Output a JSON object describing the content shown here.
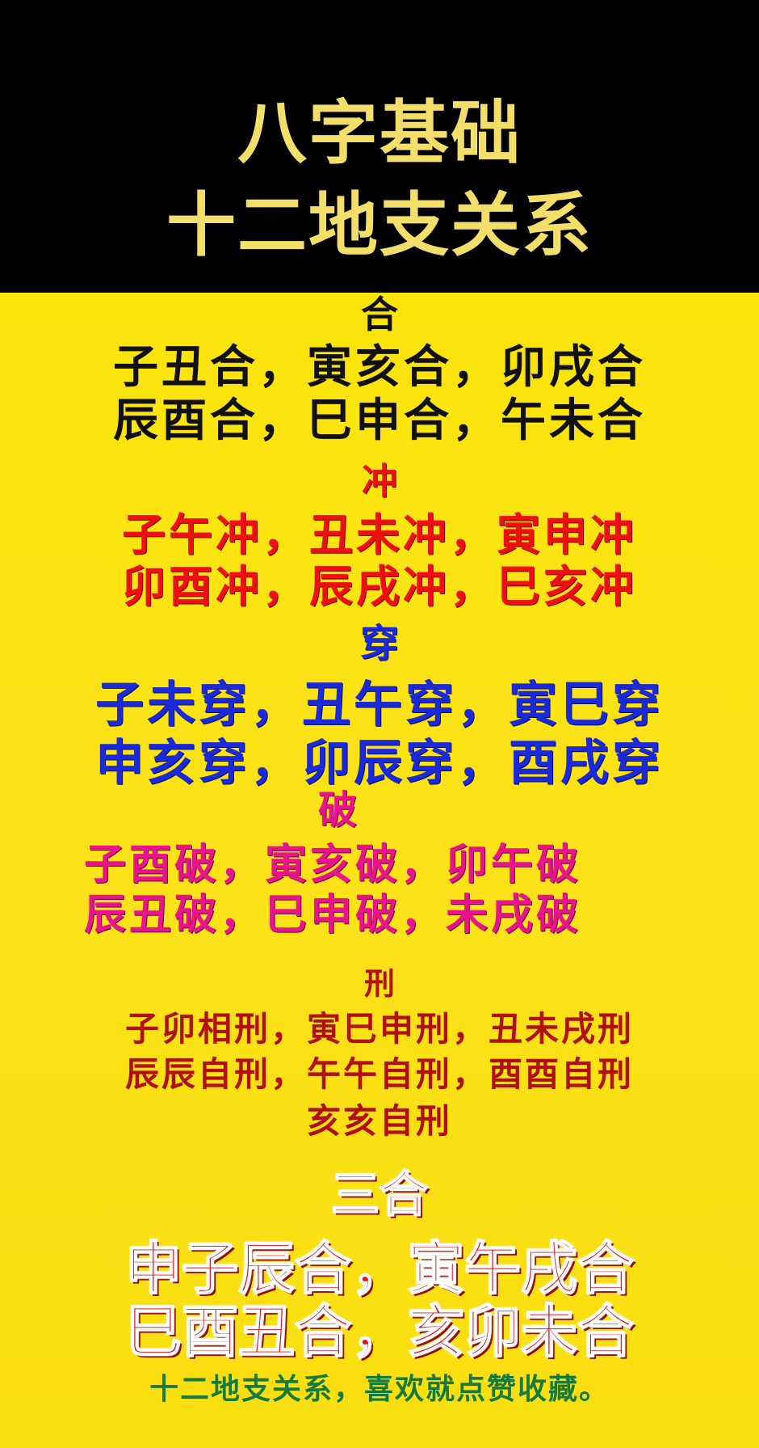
{
  "header": {
    "title_line1": "八字基础",
    "title_line2": "十二地支关系"
  },
  "sections": {
    "he": {
      "heading": "合",
      "line1": "子丑合，寅亥合，卯戌合",
      "line2": "辰酉合，巳申合，午未合"
    },
    "chong": {
      "heading": "冲",
      "line1": "子午冲，丑未冲，寅申冲",
      "line2": "卯酉冲，辰戌冲，巳亥冲"
    },
    "chuan": {
      "heading": "穿",
      "line1": "子未穿，丑午穿，寅巳穿",
      "line2": "申亥穿，卯辰穿，酉戌穿"
    },
    "po": {
      "heading": "破",
      "line1": "子酉破，寅亥破，卯午破",
      "line2": "辰丑破，巳申破，未戌破"
    },
    "xing": {
      "heading": "刑",
      "line1": "子卯相刑，寅巳申刑，丑未戌刑",
      "line2": "辰辰自刑，午午自刑，酉酉自刑",
      "line3": "亥亥自刑"
    },
    "sanhe": {
      "heading": "三合",
      "line1": "申子辰合，寅午戌合",
      "line2": "巳酉丑合，亥卯未合"
    }
  },
  "footer": {
    "text": "十二地支关系，喜欢就点赞收藏。"
  },
  "colors": {
    "background": "#fbe40c",
    "title": "#f3de6a",
    "he": "#111111",
    "chong": "#ee1010",
    "chuan": "#1a2ad8",
    "po": "#e8148e",
    "xing": "#b01010",
    "footer": "#157a3c"
  }
}
